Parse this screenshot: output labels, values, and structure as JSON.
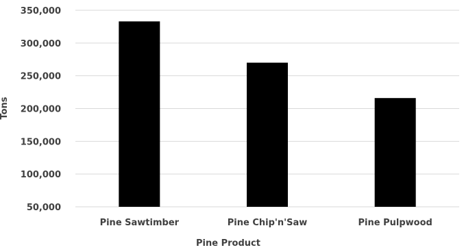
{
  "chart_data": {
    "type": "bar",
    "categories": [
      "Pine Sawtimber",
      "Pine Chip'n'Saw",
      "Pine Pulpwood"
    ],
    "values": [
      333000,
      270000,
      216000
    ],
    "title": "",
    "xlabel": "Pine Product",
    "ylabel": "Tons",
    "ylim": [
      50000,
      350000
    ],
    "yticks": [
      50000,
      100000,
      150000,
      200000,
      250000,
      300000,
      350000
    ],
    "ytick_labels": [
      "50,000",
      "100,000",
      "150,000",
      "200,000",
      "250,000",
      "300,000",
      "350,000"
    ],
    "grid": true,
    "legend": "none",
    "bar_color": "#000000",
    "gridline_color": "#d9d9d9",
    "text_color": "#404040"
  }
}
